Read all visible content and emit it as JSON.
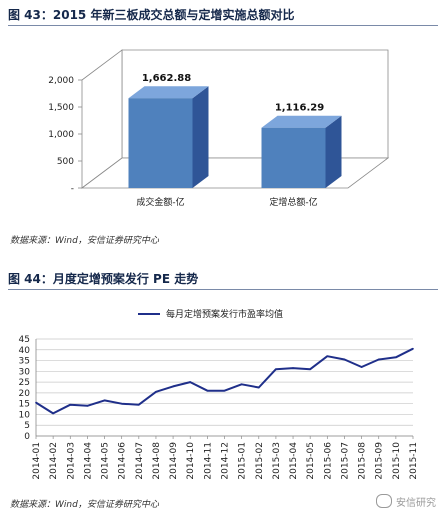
{
  "figure1": {
    "title": "图 43：2015 年新三板成交总额与定增实施总额对比",
    "source": "数据来源：Wind，安信证券研究中心",
    "chart_data": {
      "type": "bar",
      "title": "",
      "categories": [
        "成交金额-亿",
        "定增总额-亿"
      ],
      "values": [
        1662.88,
        1116.29
      ],
      "value_labels": [
        "1,662.88",
        "1,116.29"
      ],
      "yticks": [
        "-",
        "500",
        "1,000",
        "1,500",
        "2,000"
      ],
      "ylim": [
        0,
        2000
      ],
      "grid": false,
      "bar_color": "#4f81bd",
      "style": "3d"
    }
  },
  "figure2": {
    "title": "图 44：月度定增预案发行 PE 走势",
    "source": "数据来源：Wind，安信证券研究中心",
    "chart_data": {
      "type": "line",
      "title": "",
      "legend_position": "top",
      "categories": [
        "2014-01",
        "2014-02",
        "2014-03",
        "2014-04",
        "2014-05",
        "2014-06",
        "2014-07",
        "2014-08",
        "2014-09",
        "2014-10",
        "2014-11",
        "2014-12",
        "2015-01",
        "2015-02",
        "2015-03",
        "2015-04",
        "2015-05",
        "2015-06",
        "2015-07",
        "2015-08",
        "2015-09",
        "2015-10",
        "2015-11"
      ],
      "series": [
        {
          "name": "每月定增预案发行市盈率均值",
          "values": [
            15.5,
            10.5,
            14.5,
            14,
            16.5,
            15,
            14.5,
            20.5,
            23,
            25,
            21,
            21,
            24,
            22.5,
            31,
            31.5,
            31,
            37,
            35.5,
            32,
            35.5,
            36.5,
            40.5
          ]
        }
      ],
      "yticks": [
        "0",
        "5",
        "10",
        "15",
        "20",
        "25",
        "30",
        "35",
        "40",
        "45"
      ],
      "ylim": [
        0,
        45
      ],
      "grid": true,
      "line_color": "#1f2f8a"
    }
  },
  "watermark": "安信研究"
}
